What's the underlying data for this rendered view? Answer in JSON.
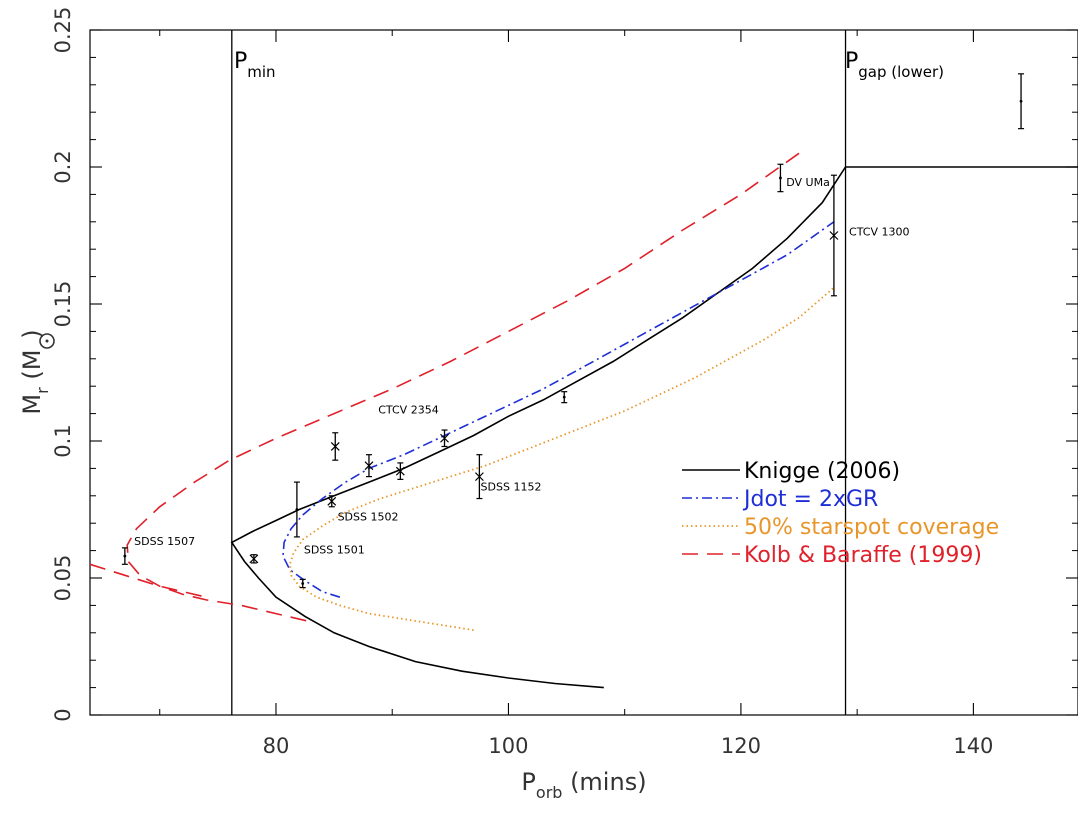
{
  "chart_data": {
    "type": "line",
    "title": "",
    "xlabel": {
      "main": "P",
      "sub": "orb",
      "rest": " (mins)"
    },
    "ylabel": {
      "main": "M",
      "sub": "r",
      "rest_open": " (M",
      "rest_close": ")"
    },
    "xlim": [
      64,
      149
    ],
    "ylim": [
      0,
      0.25
    ],
    "xticks": [
      80,
      100,
      120,
      140
    ],
    "yticks": [
      0,
      0.05,
      0.1,
      0.15,
      0.2,
      0.25
    ],
    "ytick_labels": [
      "0",
      "0.05",
      "0.1",
      "0.15",
      "0.2",
      "0.25"
    ],
    "grid": false,
    "legend_position": "right",
    "colors": {
      "knigge": "#000000",
      "jdot": "#1f2fd6",
      "starspot": "#e8962a",
      "kolb": "#e0202a"
    },
    "vertical_lines": [
      {
        "x": 76.2,
        "label_main": "P",
        "label_sub": "min",
        "label_rest": ""
      },
      {
        "x": 129.0,
        "label_main": "P",
        "label_sub": "gap (lower)",
        "label_rest": ""
      }
    ],
    "series": [
      {
        "name": "Knigge (2006)",
        "style": "solid",
        "color": "#000000",
        "points": [
          [
            108.2,
            0.01
          ],
          [
            104,
            0.0115
          ],
          [
            100,
            0.0135
          ],
          [
            96,
            0.016
          ],
          [
            92,
            0.0195
          ],
          [
            88,
            0.025
          ],
          [
            85,
            0.03
          ],
          [
            82.5,
            0.036
          ],
          [
            80,
            0.043
          ],
          [
            78.5,
            0.05
          ],
          [
            77.3,
            0.056
          ],
          [
            76.2,
            0.063
          ],
          [
            78,
            0.067
          ],
          [
            80,
            0.071
          ],
          [
            82,
            0.075
          ],
          [
            85,
            0.08
          ],
          [
            88,
            0.085
          ],
          [
            91,
            0.09
          ],
          [
            94,
            0.096
          ],
          [
            97,
            0.102
          ],
          [
            100,
            0.109
          ],
          [
            103,
            0.115
          ],
          [
            106,
            0.122
          ],
          [
            109,
            0.129
          ],
          [
            112,
            0.137
          ],
          [
            115,
            0.145
          ],
          [
            118,
            0.154
          ],
          [
            121,
            0.163
          ],
          [
            124,
            0.174
          ],
          [
            127,
            0.187
          ],
          [
            129,
            0.2
          ],
          [
            149,
            0.2
          ]
        ]
      },
      {
        "name": "Jdot = 2xGR",
        "style": "dashdot",
        "color": "#1f2fd6",
        "points": [
          [
            85.5,
            0.043
          ],
          [
            84,
            0.045
          ],
          [
            82.5,
            0.049
          ],
          [
            81.2,
            0.053
          ],
          [
            80.6,
            0.058
          ],
          [
            80.7,
            0.063
          ],
          [
            81.3,
            0.068
          ],
          [
            82.3,
            0.073
          ],
          [
            84,
            0.079
          ],
          [
            86,
            0.085
          ],
          [
            88,
            0.09
          ],
          [
            91,
            0.095
          ],
          [
            94,
            0.101
          ],
          [
            97,
            0.107
          ],
          [
            100,
            0.113
          ],
          [
            103,
            0.119
          ],
          [
            106,
            0.126
          ],
          [
            109,
            0.133
          ],
          [
            112,
            0.14
          ],
          [
            115,
            0.147
          ],
          [
            118,
            0.154
          ],
          [
            121,
            0.161
          ],
          [
            124,
            0.168
          ],
          [
            128,
            0.18
          ]
        ]
      },
      {
        "name": "50% starspot coverage",
        "style": "dotted",
        "color": "#e8962a",
        "points": [
          [
            97,
            0.031
          ],
          [
            94,
            0.033
          ],
          [
            91,
            0.035
          ],
          [
            88,
            0.037
          ],
          [
            85.5,
            0.04
          ],
          [
            83.5,
            0.043
          ],
          [
            82,
            0.047
          ],
          [
            81.3,
            0.051
          ],
          [
            81.2,
            0.055
          ],
          [
            81.5,
            0.059
          ],
          [
            82.3,
            0.064
          ],
          [
            84,
            0.069
          ],
          [
            86,
            0.074
          ],
          [
            89,
            0.079
          ],
          [
            92,
            0.083
          ],
          [
            95,
            0.087
          ],
          [
            98,
            0.091
          ],
          [
            101,
            0.096
          ],
          [
            104,
            0.101
          ],
          [
            107,
            0.106
          ],
          [
            110,
            0.111
          ],
          [
            113,
            0.117
          ],
          [
            116,
            0.123
          ],
          [
            119,
            0.13
          ],
          [
            122,
            0.137
          ],
          [
            125,
            0.145
          ],
          [
            128,
            0.156
          ]
        ]
      },
      {
        "name": "Kolb & Baraffe (1999)",
        "style": "dashed",
        "color": "#e0202a",
        "points": [
          [
            125,
            0.205
          ],
          [
            120,
            0.19
          ],
          [
            115,
            0.177
          ],
          [
            110,
            0.163
          ],
          [
            105,
            0.151
          ],
          [
            100,
            0.14
          ],
          [
            95,
            0.129
          ],
          [
            90,
            0.119
          ],
          [
            85,
            0.11
          ],
          [
            80,
            0.101
          ],
          [
            76,
            0.093
          ],
          [
            73,
            0.085
          ],
          [
            70,
            0.076
          ],
          [
            68,
            0.068
          ],
          [
            67.2,
            0.062
          ],
          [
            67.3,
            0.056
          ],
          [
            68.3,
            0.051
          ],
          [
            70,
            0.047
          ],
          [
            72,
            0.044
          ],
          [
            74,
            0.042
          ],
          [
            77,
            0.04
          ],
          [
            80,
            0.037
          ],
          [
            83,
            0.034
          ]
        ]
      },
      {
        "name": "",
        "style": "dashed",
        "color": "#e0202a",
        "points": [
          [
            64,
            0.055
          ],
          [
            67,
            0.051
          ],
          [
            70,
            0.047
          ],
          [
            74,
            0.043
          ]
        ]
      }
    ],
    "errorbars": [
      {
        "x": 67.0,
        "y": 0.058,
        "err": 0.003,
        "marker": "dot"
      },
      {
        "x": 78.1,
        "y": 0.057,
        "err": 0.0015,
        "marker": "x"
      },
      {
        "x": 81.8,
        "y": 0.075,
        "err": 0.01,
        "marker": "dot"
      },
      {
        "x": 82.3,
        "y": 0.048,
        "err": 0.0015,
        "marker": "dot"
      },
      {
        "x": 84.8,
        "y": 0.078,
        "err": 0.002,
        "marker": "x"
      },
      {
        "x": 85.1,
        "y": 0.098,
        "err": 0.005,
        "marker": "x"
      },
      {
        "x": 88.0,
        "y": 0.091,
        "err": 0.004,
        "marker": "x"
      },
      {
        "x": 90.7,
        "y": 0.089,
        "err": 0.003,
        "marker": "x"
      },
      {
        "x": 94.5,
        "y": 0.101,
        "err": 0.003,
        "marker": "x"
      },
      {
        "x": 97.5,
        "y": 0.087,
        "err": 0.008,
        "marker": "x"
      },
      {
        "x": 104.8,
        "y": 0.116,
        "err": 0.002,
        "marker": "dot"
      },
      {
        "x": 123.4,
        "y": 0.196,
        "err": 0.005,
        "marker": "dot"
      },
      {
        "x": 128.0,
        "y": 0.175,
        "err": 0.022,
        "marker": "x"
      },
      {
        "x": 144.1,
        "y": 0.224,
        "err": 0.01,
        "marker": "dot"
      }
    ],
    "annotations": [
      {
        "text": "SDSS 1507",
        "x": 67.8,
        "y": 0.062
      },
      {
        "text": "SDSS 1501",
        "x": 82.4,
        "y": 0.059
      },
      {
        "text": "SDSS 1502",
        "x": 85.3,
        "y": 0.071
      },
      {
        "text": "SDSS 1152",
        "x": 97.6,
        "y": 0.082
      },
      {
        "text": "CTCV 2354",
        "x": 88.8,
        "y": 0.11
      },
      {
        "text": "DV UMa",
        "x": 123.9,
        "y": 0.193
      },
      {
        "text": "CTCV 1300",
        "x": 129.3,
        "y": 0.175
      }
    ]
  }
}
